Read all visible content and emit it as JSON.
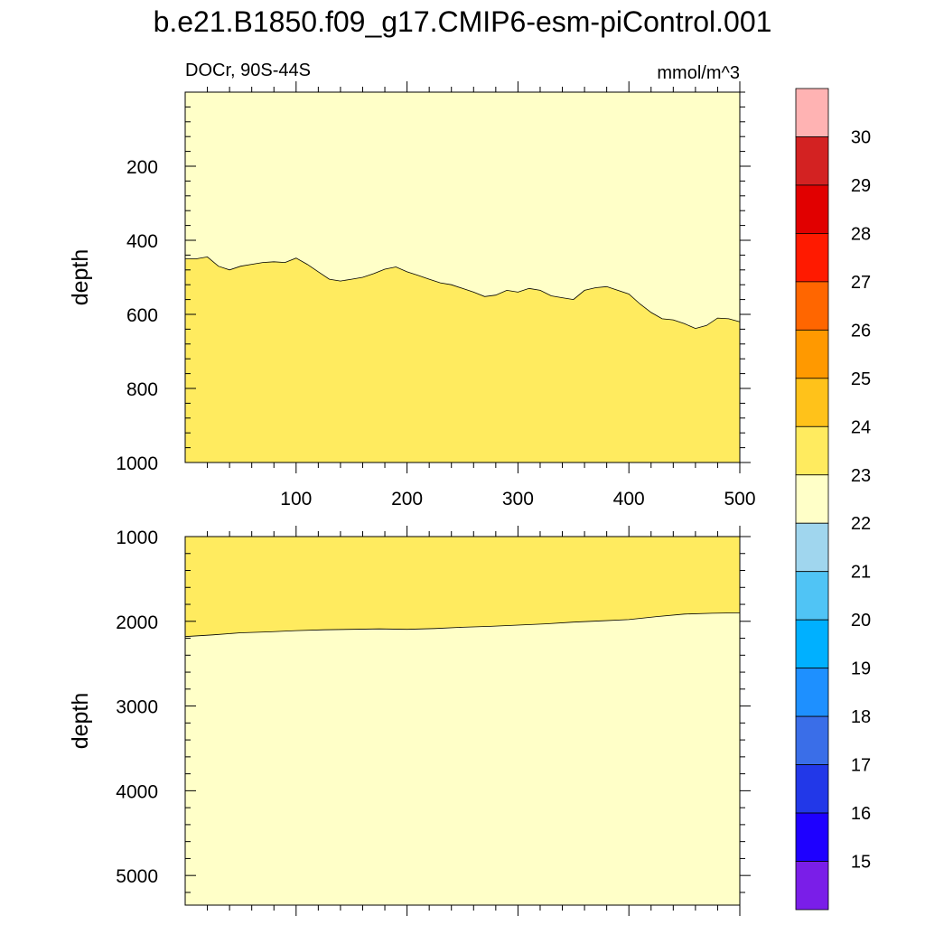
{
  "title": "b.e21.B1850.f09_g17.CMIP6-esm-piControl.001",
  "chart_data": [
    {
      "type": "heatmap",
      "title": "",
      "left_label": "DOCr, 90S-44S",
      "right_label": "mmol/m^3",
      "ylabel": "depth",
      "xlabel": "",
      "xlim": [
        0,
        500
      ],
      "ylim": [
        0,
        1000
      ],
      "y_reversed": true,
      "xticks": [
        100,
        200,
        300,
        400,
        500
      ],
      "yticks": [
        200,
        400,
        600,
        800,
        1000
      ],
      "fill_above": "#ffffc8",
      "fill_below": "#ffeb5f",
      "boundary_level": 23,
      "boundary": {
        "x": [
          0,
          10,
          20,
          30,
          40,
          50,
          60,
          70,
          80,
          90,
          100,
          110,
          120,
          130,
          140,
          150,
          160,
          170,
          180,
          190,
          200,
          210,
          220,
          230,
          240,
          250,
          260,
          270,
          280,
          290,
          300,
          310,
          320,
          330,
          340,
          350,
          360,
          370,
          380,
          390,
          400,
          410,
          420,
          430,
          440,
          450,
          460,
          470,
          480,
          490,
          500
        ],
        "depth": [
          450,
          450,
          445,
          470,
          480,
          470,
          465,
          460,
          458,
          460,
          448,
          465,
          485,
          505,
          510,
          505,
          500,
          490,
          478,
          472,
          485,
          495,
          505,
          515,
          520,
          530,
          540,
          552,
          548,
          535,
          540,
          530,
          535,
          550,
          555,
          560,
          535,
          528,
          525,
          535,
          545,
          572,
          595,
          612,
          615,
          625,
          638,
          630,
          610,
          612,
          620
        ]
      }
    },
    {
      "type": "heatmap",
      "title": "",
      "ylabel": "depth",
      "xlabel": "",
      "xlim": [
        0,
        500
      ],
      "ylim": [
        1000,
        5350
      ],
      "y_reversed": true,
      "yticks": [
        1000,
        2000,
        3000,
        4000,
        5000
      ],
      "fill_above": "#ffeb5f",
      "fill_below": "#ffffc8",
      "boundary_level": 23,
      "boundary": {
        "x": [
          0,
          25,
          50,
          75,
          100,
          125,
          150,
          175,
          200,
          225,
          250,
          275,
          300,
          325,
          350,
          375,
          400,
          425,
          450,
          475,
          500
        ],
        "depth": [
          2180,
          2160,
          2135,
          2125,
          2110,
          2100,
          2095,
          2090,
          2095,
          2085,
          2070,
          2060,
          2045,
          2030,
          2010,
          1995,
          1980,
          1945,
          1915,
          1905,
          1900
        ]
      }
    }
  ],
  "colorbar": {
    "labels": [
      "30",
      "29",
      "28",
      "27",
      "26",
      "25",
      "24",
      "23",
      "22",
      "21",
      "20",
      "19",
      "18",
      "17",
      "16",
      "15"
    ],
    "colors": [
      "#ffb3b3",
      "#d32222",
      "#e10000",
      "#ff1a00",
      "#ff6600",
      "#ff9900",
      "#ffc21a",
      "#ffeb5f",
      "#ffffc8",
      "#a0d6ee",
      "#50c4f5",
      "#00b0ff",
      "#1e90ff",
      "#3a6ee8",
      "#2238e8",
      "#1e00ff",
      "#7a1ee8"
    ]
  }
}
